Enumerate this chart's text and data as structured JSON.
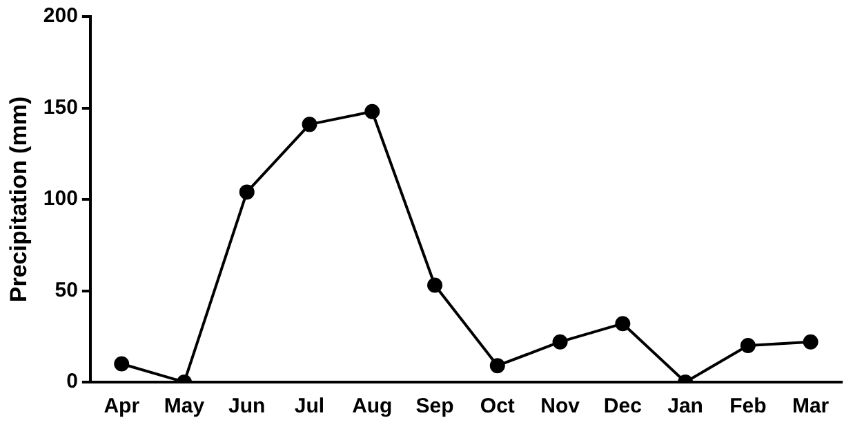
{
  "chart_data": {
    "type": "line",
    "ylabel": "Precipitation (mm)",
    "categories": [
      "Apr",
      "May",
      "Jun",
      "Jul",
      "Aug",
      "Sep",
      "Oct",
      "Nov",
      "Dec",
      "Jan",
      "Feb",
      "Mar"
    ],
    "series": [
      {
        "color": "#000000",
        "values": [
          10,
          0,
          104,
          141,
          148,
          53,
          9,
          22,
          32,
          0,
          20,
          22
        ]
      }
    ],
    "ylim": [
      0,
      200
    ],
    "yticks": [
      0,
      50,
      100,
      150,
      200
    ],
    "grid": false,
    "legend": false,
    "marker": "circle",
    "line_style": "solid"
  }
}
